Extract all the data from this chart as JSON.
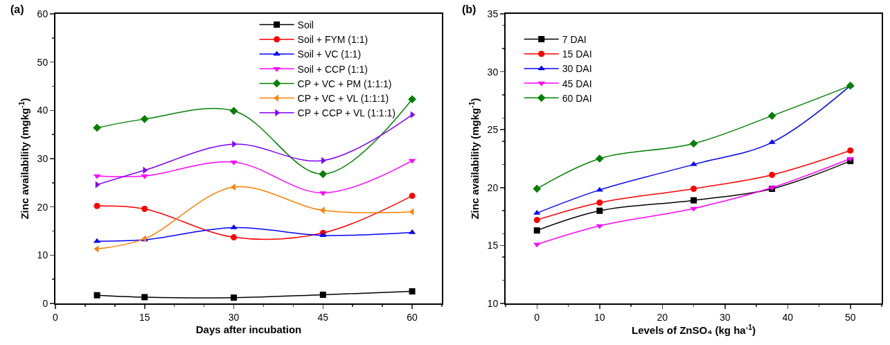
{
  "chart_data": [
    {
      "type": "line",
      "annotations": [
        "(a)"
      ],
      "xlabel": "Days after incubation",
      "ylabel": "Zinc availability (mgkg$^{-1}$)",
      "x": [
        7,
        15,
        30,
        45,
        60
      ],
      "xlim": [
        0,
        65
      ],
      "xticks": [
        0,
        15,
        30,
        45,
        60
      ],
      "ylim": [
        0,
        60
      ],
      "yticks": [
        0,
        10,
        20,
        30,
        40,
        50,
        60
      ],
      "grid": false,
      "legend": "top right",
      "line_style": "solid",
      "series": [
        {
          "name": "Soil",
          "color": "#000000",
          "marker": "square",
          "values": [
            1.7,
            1.3,
            1.2,
            1.8,
            2.5
          ]
        },
        {
          "name": "Soil + FYM (1:1)",
          "color": "#ff0000",
          "marker": "circle",
          "values": [
            20.2,
            19.6,
            13.7,
            14.6,
            22.3
          ]
        },
        {
          "name": "Soil + VC (1:1)",
          "color": "#0000ff",
          "marker": "triangle",
          "values": [
            12.9,
            13.2,
            15.7,
            14.1,
            14.7
          ]
        },
        {
          "name": "Soil + CCP (1:1)",
          "color": "#ff00ff",
          "marker": "triangle-down",
          "values": [
            26.4,
            26.4,
            29.3,
            22.9,
            29.6
          ]
        },
        {
          "name": "CP + VC + PM (1:1:1)",
          "color": "#008000",
          "marker": "diamond",
          "values": [
            36.4,
            38.2,
            39.9,
            26.8,
            42.3
          ]
        },
        {
          "name": "CP + VC + VL (1:1:1)",
          "color": "#ff8000",
          "marker": "triangle-left",
          "values": [
            11.3,
            13.4,
            24.1,
            19.3,
            19.0
          ]
        },
        {
          "name": "CP + CCP + VL (1:1:1)",
          "color": "#8000ff",
          "marker": "triangle-right",
          "values": [
            24.6,
            27.6,
            33.0,
            29.6,
            39.1
          ]
        }
      ]
    },
    {
      "type": "line",
      "annotations": [
        "(b)"
      ],
      "xlabel": "Levels of ZnSO₄ (kg ha$^{-1}$)",
      "ylabel": "Zinc availability (mgkg$^{-1}$)",
      "x": [
        0,
        10,
        25,
        37.5,
        50
      ],
      "xlim": [
        -5,
        55
      ],
      "xticks": [
        0,
        10,
        20,
        30,
        40,
        50
      ],
      "ylim": [
        10,
        35
      ],
      "yticks": [
        10,
        15,
        20,
        25,
        30,
        35
      ],
      "grid": false,
      "legend": "top left",
      "line_style": "solid",
      "series": [
        {
          "name": "7 DAI",
          "color": "#000000",
          "marker": "square",
          "values": [
            16.3,
            18.0,
            18.9,
            19.9,
            22.3
          ]
        },
        {
          "name": "15 DAI",
          "color": "#ff0000",
          "marker": "circle",
          "values": [
            17.2,
            18.7,
            19.9,
            21.1,
            23.2
          ]
        },
        {
          "name": "30 DAI",
          "color": "#0000ff",
          "marker": "triangle",
          "values": [
            17.8,
            19.8,
            22.0,
            23.9,
            28.8
          ]
        },
        {
          "name": "45 DAI",
          "color": "#ff00ff",
          "marker": "triangle-down",
          "values": [
            15.1,
            16.7,
            18.2,
            20.0,
            22.5
          ]
        },
        {
          "name": "60 DAI",
          "color": "#008000",
          "marker": "diamond",
          "values": [
            19.9,
            22.5,
            23.8,
            26.2,
            28.8
          ]
        }
      ]
    }
  ]
}
